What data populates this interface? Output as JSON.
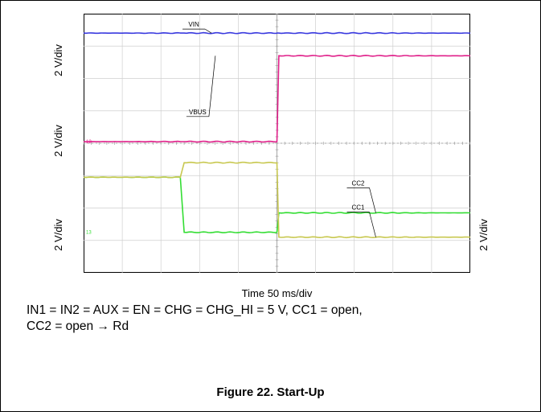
{
  "chart_data": {
    "type": "line",
    "xlabel": "Time 50 ms/div",
    "ylabels": [
      "2 V/div",
      "2 V/div",
      "2 V/div",
      "2 V/div"
    ],
    "x_divisions": 10,
    "y_divisions": 8,
    "x": [
      0,
      2.5,
      2.6,
      5,
      5.05,
      10
    ],
    "series": [
      {
        "name": "VIN",
        "color": "#3a3adf",
        "values": [
          7.4,
          7.4,
          7.4,
          7.4,
          7.4,
          7.4
        ]
      },
      {
        "name": "VBUS",
        "color": "#e0208a",
        "values": [
          4.05,
          4.05,
          4.05,
          4.05,
          6.7,
          6.7
        ]
      },
      {
        "name": "CC2",
        "color": "#33dd33",
        "values": [
          2.95,
          2.95,
          1.25,
          1.25,
          1.85,
          1.85
        ]
      },
      {
        "name": "CC1",
        "color": "#c8c850",
        "values": [
          2.95,
          2.95,
          3.4,
          3.4,
          1.1,
          1.1
        ]
      }
    ]
  },
  "caption_lines": [
    "IN1 = IN2 = AUX = EN = CHG = CHG_HI = 5 V, CC1 = open,",
    "CC2 = open → Rd"
  ],
  "figure_title": "Figure 22. Start-Up"
}
